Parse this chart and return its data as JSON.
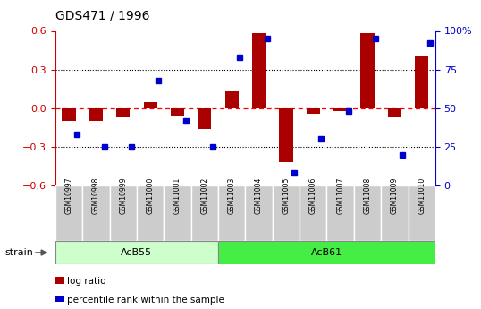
{
  "title": "GDS471 / 1996",
  "samples": [
    "GSM10997",
    "GSM10998",
    "GSM10999",
    "GSM11000",
    "GSM11001",
    "GSM11002",
    "GSM11003",
    "GSM11004",
    "GSM11005",
    "GSM11006",
    "GSM11007",
    "GSM11008",
    "GSM11009",
    "GSM11010"
  ],
  "log_ratio": [
    -0.1,
    -0.1,
    -0.07,
    0.05,
    -0.06,
    -0.16,
    0.13,
    0.58,
    -0.42,
    -0.04,
    -0.02,
    0.58,
    -0.07,
    0.4
  ],
  "percentile": [
    33,
    25,
    25,
    68,
    42,
    25,
    83,
    95,
    8,
    30,
    48,
    95,
    20,
    92
  ],
  "ylim_left": [
    -0.6,
    0.6
  ],
  "ylim_right": [
    0,
    100
  ],
  "yticks_left": [
    -0.6,
    -0.3,
    0.0,
    0.3,
    0.6
  ],
  "yticks_right": [
    0,
    25,
    50,
    75,
    100
  ],
  "bar_color": "#aa0000",
  "dot_color": "#0000cc",
  "acb55_count": 6,
  "acb61_count": 8,
  "strain_label": "strain",
  "acb55_label": "AcB55",
  "acb61_label": "AcB61",
  "legend_bar_label": "log ratio",
  "legend_dot_label": "percentile rank within the sample",
  "acb55_color": "#ccffcc",
  "acb61_color": "#44ee44",
  "tick_color_left": "#cc0000",
  "tick_color_right": "#0000cc",
  "bar_width": 0.5,
  "dot_size": 4
}
